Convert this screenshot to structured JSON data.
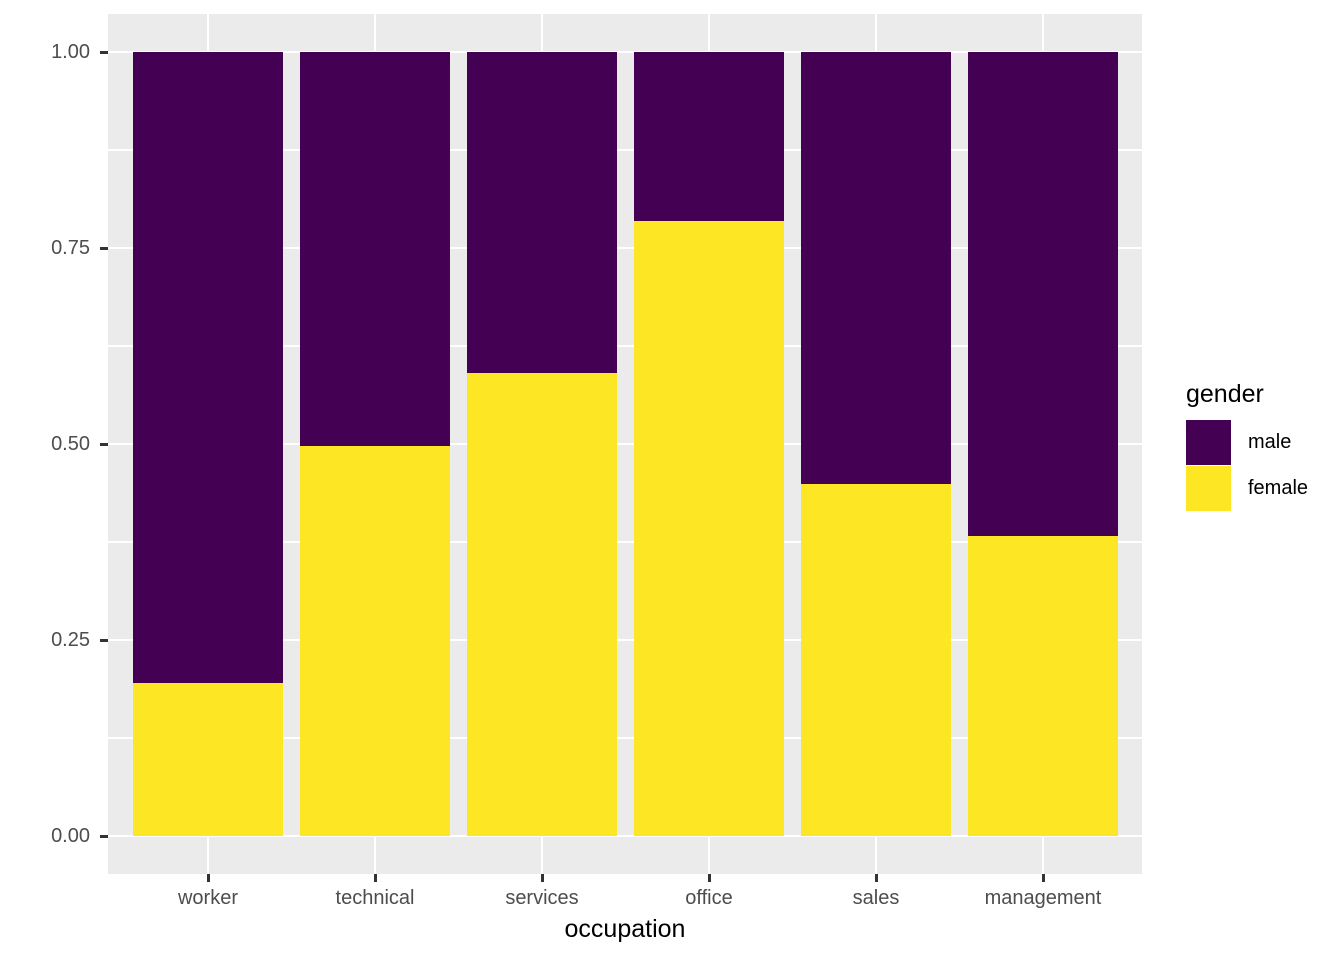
{
  "chart_data": {
    "type": "bar",
    "subtype": "stacked-proportion",
    "title": "",
    "xlabel": "occupation",
    "ylabel": "",
    "categories": [
      "worker",
      "technical",
      "services",
      "office",
      "sales",
      "management"
    ],
    "series": [
      {
        "name": "male",
        "color": "#440154",
        "values": [
          0.805,
          0.503,
          0.409,
          0.215,
          0.551,
          0.617
        ]
      },
      {
        "name": "female",
        "color": "#FDE725",
        "values": [
          0.195,
          0.497,
          0.591,
          0.785,
          0.449,
          0.383
        ]
      }
    ],
    "stack_order": "top-to-bottom as listed; each bar sums to 1.00",
    "legend": {
      "title": "gender",
      "position": "right"
    },
    "y_axis": {
      "range": [
        0,
        1
      ],
      "ticks": [
        {
          "value": 1.0,
          "label": "1.00"
        },
        {
          "value": 0.75,
          "label": "0.75"
        },
        {
          "value": 0.5,
          "label": "0.50"
        },
        {
          "value": 0.25,
          "label": "0.25"
        },
        {
          "value": 0.0,
          "label": "0.00"
        }
      ],
      "minor_gridlines": [
        0.875,
        0.625,
        0.375,
        0.125
      ]
    },
    "grid": "major and minor horizontal white gridlines, vertical white gridlines at category centers",
    "style": {
      "panel_bg": "#EBEBEB",
      "gridline_color": "#FFFFFF",
      "axis_text_color": "#4D4D4D",
      "title_color": "#000000",
      "tick_mark_color": "#333333",
      "background": "#FFFFFF"
    }
  }
}
